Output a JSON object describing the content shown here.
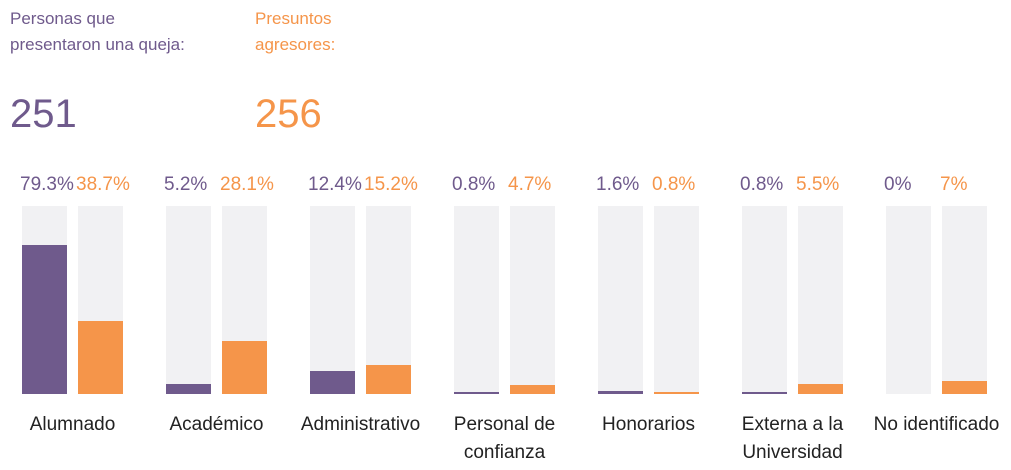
{
  "chart_data": {
    "type": "bar",
    "categories": [
      "Alumnado",
      "Académico",
      "Administrativo",
      "Personal de confianza",
      "Honorarios",
      "Externa a la Universidad",
      "No identificado"
    ],
    "ylim": [
      0,
      100
    ],
    "track_color": "#f1f1f3",
    "series": [
      {
        "name": "Personas que presentaron una queja:",
        "total": 251,
        "color": "#6f5a8c",
        "values": [
          79.3,
          5.2,
          12.4,
          0.8,
          1.6,
          0.8,
          0
        ],
        "value_labels": [
          "79.3%",
          "5.2%",
          "12.4%",
          "0.8%",
          "1.6%",
          "0.8%",
          "0%"
        ]
      },
      {
        "name": "Presuntos agresores:",
        "total": 256,
        "color": "#f5954a",
        "values": [
          38.7,
          28.1,
          15.2,
          4.7,
          0.8,
          5.5,
          7
        ],
        "value_labels": [
          "38.7%",
          "28.1%",
          "15.2%",
          "4.7%",
          "0.8%",
          "5.5%",
          "7%"
        ]
      }
    ]
  }
}
